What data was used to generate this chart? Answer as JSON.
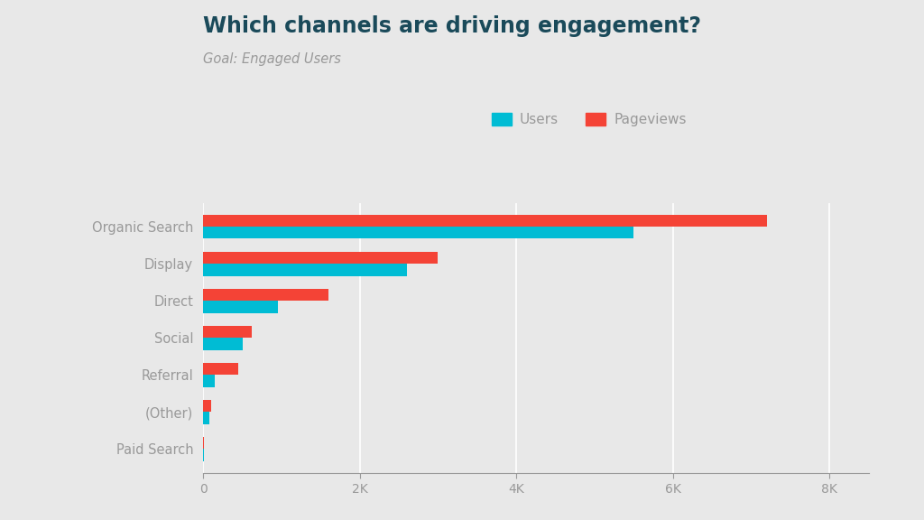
{
  "title": "Which channels are driving engagement?",
  "subtitle": "Goal: Engaged Users",
  "categories": [
    "Organic Search",
    "Display",
    "Direct",
    "Social",
    "Referral",
    "(Other)",
    "Paid Search"
  ],
  "users": [
    5500,
    2600,
    950,
    500,
    150,
    80,
    5
  ],
  "pageviews": [
    7200,
    3000,
    1600,
    620,
    450,
    100,
    5
  ],
  "color_users": "#00BCD4",
  "color_pageviews": "#F44336",
  "background_color": "#E8E8E8",
  "title_color": "#1a4a5a",
  "subtitle_color": "#999999",
  "tick_color": "#999999",
  "grid_color": "#ffffff",
  "bar_height": 0.32,
  "xlim": [
    0,
    8500
  ],
  "xticks": [
    0,
    2000,
    4000,
    6000,
    8000
  ],
  "xtick_labels": [
    "0",
    "2K",
    "4K",
    "6K",
    "8K"
  ],
  "legend_labels": [
    "Users",
    "Pageviews"
  ]
}
